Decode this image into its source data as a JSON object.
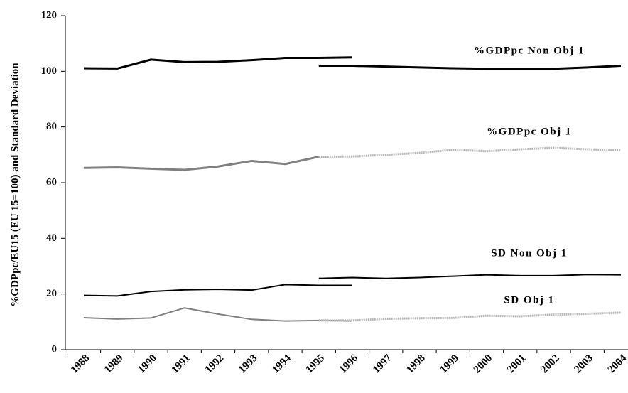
{
  "chart_data": {
    "type": "line",
    "y_label": "%GDPpc/EU15 (EU 15=100)  and Standard Deviation",
    "categories": [
      "1988",
      "1989",
      "1990",
      "1991",
      "1992",
      "1993",
      "1994",
      "1995",
      "1996",
      "1997",
      "1998",
      "1999",
      "2000",
      "2001",
      "2002",
      "2003",
      "2004"
    ],
    "ylim": [
      0,
      120
    ],
    "yticks": [
      0,
      20,
      40,
      60,
      80,
      100,
      120
    ],
    "series": [
      {
        "color": "#000000",
        "width": 3,
        "dotted": false,
        "values": [
          101.1,
          101,
          104.2,
          103.3,
          103.4,
          104,
          104.8,
          104.8,
          105,
          null,
          null,
          null,
          null,
          null,
          null,
          null,
          null
        ]
      },
      {
        "name": "%GDPpc Non Obj 1",
        "color": "#000000",
        "width": 3,
        "dotted": false,
        "values": [
          null,
          null,
          null,
          null,
          null,
          null,
          null,
          102,
          102,
          101.7,
          101.4,
          101.1,
          100.9,
          100.9,
          100.9,
          101.4,
          102
        ]
      },
      {
        "color": "#808080",
        "width": 3,
        "dotted": false,
        "values": [
          65.3,
          65.5,
          65,
          64.6,
          65.8,
          67.8,
          66.7,
          69.3,
          null,
          null,
          null,
          null,
          null,
          null,
          null,
          null,
          null
        ]
      },
      {
        "name": "%GDPpc Obj 1",
        "color": "#b8b8b8",
        "width": 3,
        "dotted": true,
        "values": [
          null,
          null,
          null,
          null,
          null,
          null,
          null,
          69.3,
          69.4,
          70,
          70.7,
          71.8,
          71.3,
          72,
          72.5,
          72,
          71.7
        ]
      },
      {
        "color": "#000000",
        "width": 2,
        "dotted": false,
        "values": [
          19.5,
          19.3,
          20.9,
          21.5,
          21.7,
          21.4,
          23.4,
          23.1,
          23.1,
          null,
          null,
          null,
          null,
          null,
          null,
          null,
          null
        ]
      },
      {
        "name": "SD Non Obj 1",
        "color": "#000000",
        "width": 2,
        "dotted": false,
        "values": [
          null,
          null,
          null,
          null,
          null,
          null,
          null,
          25.6,
          25.9,
          25.6,
          25.9,
          26.4,
          26.9,
          26.6,
          26.6,
          27,
          26.9
        ]
      },
      {
        "color": "#808080",
        "width": 2,
        "dotted": false,
        "values": [
          11.5,
          11,
          11.4,
          15,
          12.8,
          10.9,
          10.3,
          10.5,
          10.3,
          null,
          null,
          null,
          null,
          null,
          null,
          null,
          null
        ]
      },
      {
        "name": "SD Obj 1",
        "color": "#b8b8b8",
        "width": 3,
        "dotted": true,
        "values": [
          null,
          null,
          null,
          null,
          null,
          null,
          null,
          10.5,
          10.5,
          11.1,
          11.3,
          11.4,
          12.2,
          12,
          12.6,
          12.9,
          13.3
        ]
      }
    ]
  }
}
